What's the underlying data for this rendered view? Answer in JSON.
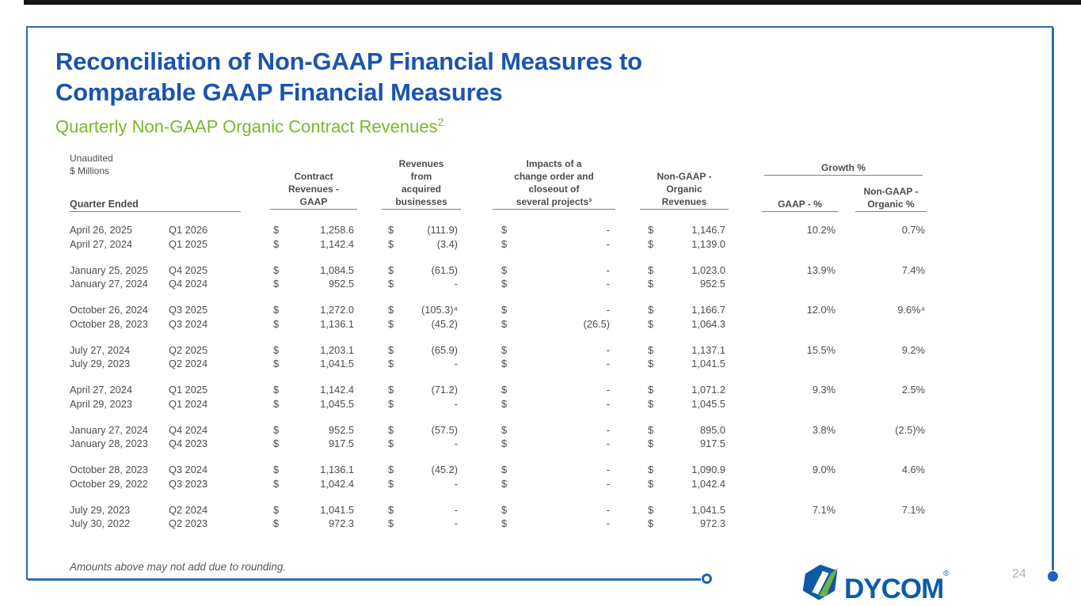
{
  "slide": {
    "title": "Reconciliation of Non-GAAP Financial Measures to\nComparable GAAP Financial Measures",
    "subtitle": "Quarterly Non-GAAP Organic Contract Revenues",
    "subtitle_superscript": "2",
    "footnote": "Amounts above may not add due to rounding.",
    "page_number": "24"
  },
  "table": {
    "meta": "Unaudited\n$ Millions",
    "row_header": "Quarter Ended",
    "currency_symbol": "$",
    "col_headers": {
      "gaap": "Contract\nRevenues -\nGAAP",
      "acquired": "Revenues\nfrom\nacquired\nbusinesses",
      "impacts": "Impacts of a\nchange order and\ncloseout of\nseveral projects³",
      "organic": "Non-GAAP -\nOrganic\nRevenues",
      "growth_group": "Growth %",
      "gaap_pct": "GAAP - %",
      "organic_pct": "Non-GAAP -\nOrganic %"
    },
    "groups": [
      {
        "rows": [
          {
            "date": "April 26, 2025",
            "quarter": "Q1 2026",
            "gaap": "1,258.6",
            "acquired": "(111.9)",
            "impacts": "-",
            "organic": "1,146.7",
            "gaap_pct": "10.2%",
            "organic_pct": "0.7%"
          },
          {
            "date": "April 27, 2024",
            "quarter": "Q1 2025",
            "gaap": "1,142.4",
            "acquired": "(3.4)",
            "impacts": "-",
            "organic": "1,139.0",
            "gaap_pct": "",
            "organic_pct": ""
          }
        ]
      },
      {
        "rows": [
          {
            "date": "January 25, 2025",
            "quarter": "Q4 2025",
            "gaap": "1,084.5",
            "acquired": "(61.5)",
            "impacts": "-",
            "organic": "1,023.0",
            "gaap_pct": "13.9%",
            "organic_pct": "7.4%"
          },
          {
            "date": "January 27, 2024",
            "quarter": "Q4 2024",
            "gaap": "952.5",
            "acquired": "-",
            "impacts": "-",
            "organic": "952.5",
            "gaap_pct": "",
            "organic_pct": ""
          }
        ]
      },
      {
        "rows": [
          {
            "date": "October 26, 2024",
            "quarter": "Q3 2025",
            "gaap": "1,272.0",
            "acquired": "(105.3)⁴",
            "impacts": "-",
            "organic": "1,166.7",
            "gaap_pct": "12.0%",
            "organic_pct": "9.6%⁴"
          },
          {
            "date": "October 28, 2023",
            "quarter": "Q3 2024",
            "gaap": "1,136.1",
            "acquired": "(45.2)",
            "impacts": "(26.5)",
            "organic": "1,064.3",
            "gaap_pct": "",
            "organic_pct": ""
          }
        ]
      },
      {
        "rows": [
          {
            "date": "July 27, 2024",
            "quarter": "Q2 2025",
            "gaap": "1,203.1",
            "acquired": "(65.9)",
            "impacts": "-",
            "organic": "1,137.1",
            "gaap_pct": "15.5%",
            "organic_pct": "9.2%"
          },
          {
            "date": "July 29, 2023",
            "quarter": "Q2 2024",
            "gaap": "1,041.5",
            "acquired": "-",
            "impacts": "-",
            "organic": "1,041.5",
            "gaap_pct": "",
            "organic_pct": ""
          }
        ]
      },
      {
        "rows": [
          {
            "date": "April 27, 2024",
            "quarter": "Q1 2025",
            "gaap": "1,142.4",
            "acquired": "(71.2)",
            "impacts": "-",
            "organic": "1,071.2",
            "gaap_pct": "9.3%",
            "organic_pct": "2.5%"
          },
          {
            "date": "April 29, 2023",
            "quarter": "Q1 2024",
            "gaap": "1,045.5",
            "acquired": "-",
            "impacts": "-",
            "organic": "1,045.5",
            "gaap_pct": "",
            "organic_pct": ""
          }
        ]
      },
      {
        "rows": [
          {
            "date": "January 27, 2024",
            "quarter": "Q4 2024",
            "gaap": "952.5",
            "acquired": "(57.5)",
            "impacts": "-",
            "organic": "895.0",
            "gaap_pct": "3.8%",
            "organic_pct": "(2.5)%"
          },
          {
            "date": "January 28, 2023",
            "quarter": "Q4 2023",
            "gaap": "917.5",
            "acquired": "-",
            "impacts": "-",
            "organic": "917.5",
            "gaap_pct": "",
            "organic_pct": ""
          }
        ]
      },
      {
        "rows": [
          {
            "date": "October 28, 2023",
            "quarter": "Q3 2024",
            "gaap": "1,136.1",
            "acquired": "(45.2)",
            "impacts": "-",
            "organic": "1,090.9",
            "gaap_pct": "9.0%",
            "organic_pct": "4.6%"
          },
          {
            "date": "October 29, 2022",
            "quarter": "Q3 2023",
            "gaap": "1,042.4",
            "acquired": "-",
            "impacts": "-",
            "organic": "1,042.4",
            "gaap_pct": "",
            "organic_pct": ""
          }
        ]
      },
      {
        "rows": [
          {
            "date": "July 29, 2023",
            "quarter": "Q2 2024",
            "gaap": "1,041.5",
            "acquired": "-",
            "impacts": "-",
            "organic": "1,041.5",
            "gaap_pct": "7.1%",
            "organic_pct": "7.1%"
          },
          {
            "date": "July 30, 2022",
            "quarter": "Q2 2023",
            "gaap": "972.3",
            "acquired": "-",
            "impacts": "-",
            "organic": "972.3",
            "gaap_pct": "",
            "organic_pct": ""
          }
        ]
      }
    ]
  },
  "logo": {
    "brand": "DYCOM",
    "registered_mark": "®"
  },
  "colors": {
    "title_blue": "#1b54b0",
    "frame_blue": "#2e6cb5",
    "accent_green": "#7ab829",
    "logo_blue": "#0d5ba8",
    "logo_green": "#6cb33f",
    "text_gray": "#4d4d4d"
  }
}
